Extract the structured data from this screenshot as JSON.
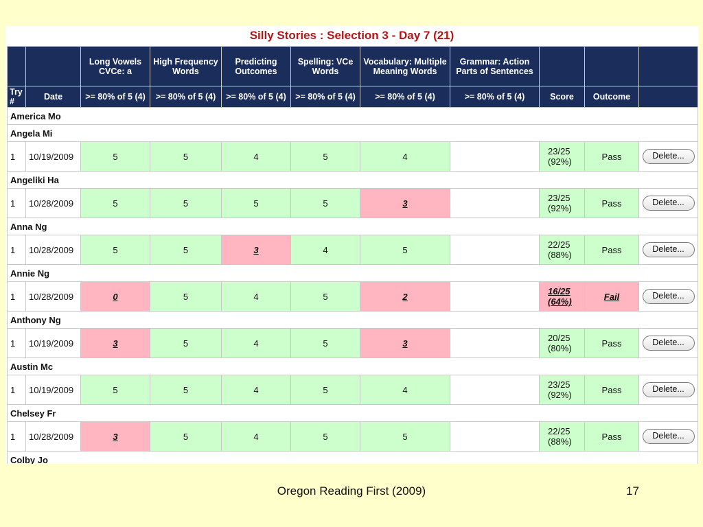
{
  "report_title": "Silly Stories : Selection 3 - Day 7 (21)",
  "header": {
    "skills": [
      "Long Vowels CVCe: a",
      "High Frequency Words",
      "Predicting Outcomes",
      "Spelling: VCe Words",
      "Vocabulary: Multiple Meaning Words",
      "Grammar: Action Parts of Sentences"
    ],
    "try_label": "Try #",
    "date_label": "Date",
    "criteria": ">= 80% of 5 (4)",
    "score_label": "Score",
    "outcome_label": "Outcome"
  },
  "students": [
    {
      "name": "America Mo",
      "attempts": []
    },
    {
      "name": "Angela Mi",
      "attempts": [
        {
          "try": "1",
          "date": "10/19/2009",
          "scores": [
            {
              "v": "5",
              "ok": true
            },
            {
              "v": "5",
              "ok": true
            },
            {
              "v": "4",
              "ok": true
            },
            {
              "v": "5",
              "ok": true
            },
            {
              "v": "4",
              "ok": true
            },
            {
              "v": "",
              "ok": null
            }
          ],
          "score_frac": "23/25",
          "score_pct": "(92%)",
          "passed": true,
          "outcome": "Pass",
          "delete_label": "Delete..."
        }
      ]
    },
    {
      "name": "Angeliki Ha",
      "attempts": [
        {
          "try": "1",
          "date": "10/28/2009",
          "scores": [
            {
              "v": "5",
              "ok": true
            },
            {
              "v": "5",
              "ok": true
            },
            {
              "v": "5",
              "ok": true
            },
            {
              "v": "5",
              "ok": true
            },
            {
              "v": "3",
              "ok": false
            },
            {
              "v": "",
              "ok": null
            }
          ],
          "score_frac": "23/25",
          "score_pct": "(92%)",
          "passed": true,
          "outcome": "Pass",
          "delete_label": "Delete..."
        }
      ]
    },
    {
      "name": "Anna Ng",
      "attempts": [
        {
          "try": "1",
          "date": "10/28/2009",
          "scores": [
            {
              "v": "5",
              "ok": true
            },
            {
              "v": "5",
              "ok": true
            },
            {
              "v": "3",
              "ok": false
            },
            {
              "v": "4",
              "ok": true
            },
            {
              "v": "5",
              "ok": true
            },
            {
              "v": "",
              "ok": null
            }
          ],
          "score_frac": "22/25",
          "score_pct": "(88%)",
          "passed": true,
          "outcome": "Pass",
          "delete_label": "Delete..."
        }
      ]
    },
    {
      "name": "Annie Ng",
      "attempts": [
        {
          "try": "1",
          "date": "10/28/2009",
          "scores": [
            {
              "v": "0",
              "ok": false
            },
            {
              "v": "5",
              "ok": true
            },
            {
              "v": "4",
              "ok": true
            },
            {
              "v": "5",
              "ok": true
            },
            {
              "v": "2",
              "ok": false
            },
            {
              "v": "",
              "ok": null
            }
          ],
          "score_frac": "16/25",
          "score_pct": "(64%)",
          "passed": false,
          "outcome": "Fail",
          "delete_label": "Delete..."
        }
      ]
    },
    {
      "name": "Anthony Ng",
      "attempts": [
        {
          "try": "1",
          "date": "10/19/2009",
          "scores": [
            {
              "v": "3",
              "ok": false
            },
            {
              "v": "5",
              "ok": true
            },
            {
              "v": "4",
              "ok": true
            },
            {
              "v": "5",
              "ok": true
            },
            {
              "v": "3",
              "ok": false
            },
            {
              "v": "",
              "ok": null
            }
          ],
          "score_frac": "20/25",
          "score_pct": "(80%)",
          "passed": true,
          "outcome": "Pass",
          "delete_label": "Delete..."
        }
      ]
    },
    {
      "name": "Austin Mc",
      "attempts": [
        {
          "try": "1",
          "date": "10/19/2009",
          "scores": [
            {
              "v": "5",
              "ok": true
            },
            {
              "v": "5",
              "ok": true
            },
            {
              "v": "4",
              "ok": true
            },
            {
              "v": "5",
              "ok": true
            },
            {
              "v": "4",
              "ok": true
            },
            {
              "v": "",
              "ok": null
            }
          ],
          "score_frac": "23/25",
          "score_pct": "(92%)",
          "passed": true,
          "outcome": "Pass",
          "delete_label": "Delete..."
        }
      ]
    },
    {
      "name": "Chelsey Fr",
      "attempts": [
        {
          "try": "1",
          "date": "10/28/2009",
          "scores": [
            {
              "v": "3",
              "ok": false
            },
            {
              "v": "5",
              "ok": true
            },
            {
              "v": "4",
              "ok": true
            },
            {
              "v": "5",
              "ok": true
            },
            {
              "v": "5",
              "ok": true
            },
            {
              "v": "",
              "ok": null
            }
          ],
          "score_frac": "22/25",
          "score_pct": "(88%)",
          "passed": true,
          "outcome": "Pass",
          "delete_label": "Delete..."
        }
      ]
    },
    {
      "name": "Colby Jo",
      "attempts": []
    }
  ],
  "colors": {
    "header_bg": "#1b2d5b",
    "pass_bg": "#ccffcc",
    "fail_bg": "#ffb6c1",
    "title_red": "#b01818",
    "slide_bg": "#ffffcc"
  },
  "footer": {
    "source": "Oregon Reading First (2009)",
    "page_number": "17"
  }
}
